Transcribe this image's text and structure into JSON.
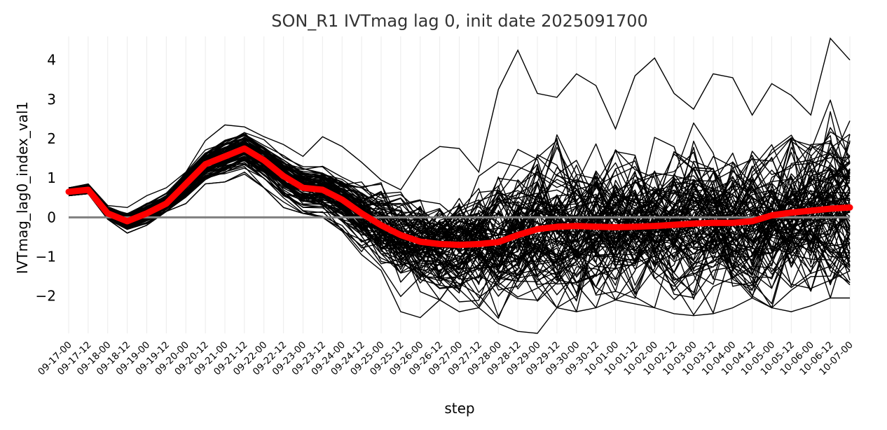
{
  "chart_data": {
    "type": "line",
    "title": "SON_R1 IVTmag lag 0, init date 2025091700",
    "xlabel": "step",
    "ylabel": "IVTmag_lag0_index_val1",
    "yticks": [
      "−2",
      "−1",
      "0",
      "1",
      "2",
      "3",
      "4"
    ],
    "ytick_values": [
      -2,
      -1,
      0,
      1,
      2,
      3,
      4
    ],
    "ylim": [
      -2.95,
      4.6
    ],
    "x": [
      "09-17-00",
      "09-17-12",
      "09-18-00",
      "09-18-12",
      "09-19-00",
      "09-19-12",
      "09-20-00",
      "09-20-12",
      "09-21-00",
      "09-21-12",
      "09-22-00",
      "09-22-12",
      "09-23-00",
      "09-23-12",
      "09-24-00",
      "09-24-12",
      "09-25-00",
      "09-25-12",
      "09-26-00",
      "09-26-12",
      "09-27-00",
      "09-27-12",
      "09-28-00",
      "09-28-12",
      "09-29-00",
      "09-29-12",
      "09-30-00",
      "09-30-12",
      "10-01-00",
      "10-01-12",
      "10-02-00",
      "10-02-12",
      "10-03-00",
      "10-03-12",
      "10-04-00",
      "10-04-12",
      "10-05-00",
      "10-05-12",
      "10-06-00",
      "10-06-12",
      "10-07-00"
    ],
    "zero_line": 0,
    "grid": "vertical",
    "ensemble_member_count": 100,
    "ensemble_color": "#000000",
    "series": [
      {
        "color": "#ff0000",
        "values": [
          0.65,
          0.7,
          0.1,
          -0.1,
          0.1,
          0.35,
          0.85,
          1.35,
          1.55,
          1.75,
          1.45,
          1.05,
          0.75,
          0.7,
          0.45,
          0.1,
          -0.2,
          -0.45,
          -0.62,
          -0.68,
          -0.7,
          -0.68,
          -0.63,
          -0.45,
          -0.3,
          -0.24,
          -0.22,
          -0.24,
          -0.25,
          -0.24,
          -0.22,
          -0.19,
          -0.16,
          -0.14,
          -0.14,
          -0.1,
          0.05,
          0.12,
          0.17,
          0.22,
          0.25
        ]
      }
    ],
    "spread": {
      "std": [
        0.06,
        0.06,
        0.09,
        0.12,
        0.13,
        0.14,
        0.18,
        0.2,
        0.22,
        0.22,
        0.24,
        0.25,
        0.28,
        0.3,
        0.35,
        0.4,
        0.48,
        0.55,
        0.6,
        0.65,
        0.68,
        0.72,
        0.78,
        0.82,
        0.88,
        0.9,
        0.9,
        0.9,
        0.9,
        0.9,
        0.9,
        0.9,
        0.92,
        0.92,
        0.92,
        0.92,
        0.95,
        0.95,
        0.98,
        1.0,
        1.0
      ],
      "max": [
        0.75,
        0.85,
        0.3,
        0.25,
        0.55,
        0.75,
        1.15,
        1.95,
        2.35,
        2.3,
        2.05,
        1.85,
        1.55,
        2.05,
        1.8,
        1.4,
        0.95,
        0.7,
        1.45,
        1.8,
        1.75,
        1.15,
        3.25,
        4.25,
        3.15,
        3.05,
        3.65,
        3.35,
        2.25,
        3.6,
        4.05,
        3.15,
        2.75,
        3.65,
        3.55,
        2.6,
        3.4,
        3.1,
        2.6,
        4.55,
        4.0
      ],
      "min": [
        0.55,
        0.6,
        -0.05,
        -0.4,
        -0.2,
        0.15,
        0.35,
        0.85,
        0.9,
        1.1,
        0.75,
        0.25,
        0.1,
        0.0,
        -0.35,
        -0.95,
        -1.35,
        -2.4,
        -2.55,
        -2.1,
        -2.4,
        -2.3,
        -2.7,
        -2.9,
        -2.95,
        -2.3,
        -2.4,
        -2.3,
        -2.1,
        -2.2,
        -2.3,
        -2.45,
        -2.5,
        -2.45,
        -2.3,
        -2.05,
        -2.3,
        -2.4,
        -2.25,
        -2.05,
        -2.05
      ]
    }
  }
}
